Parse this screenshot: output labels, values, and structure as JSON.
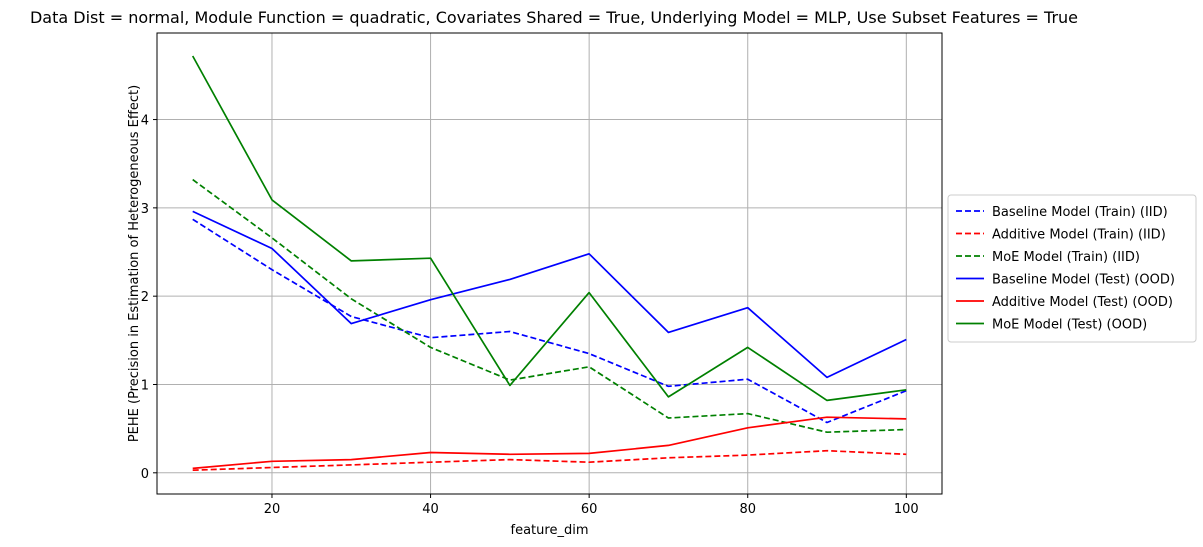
{
  "chart_data": {
    "type": "line",
    "title": "Data Dist = normal, Module Function = quadratic, Covariates Shared = True, Underlying Model = MLP, Use Subset Features = True",
    "xlabel": "feature_dim",
    "ylabel": "PEHE (Precision in Estimation of Heterogeneous Effect)",
    "xlim": [
      5.5,
      104.5
    ],
    "ylim": [
      -0.24,
      4.98
    ],
    "xticks": [
      20,
      40,
      60,
      80,
      100
    ],
    "yticks": [
      0,
      1,
      2,
      3,
      4
    ],
    "grid": true,
    "legend_position": "right-outside",
    "x": [
      10,
      20,
      30,
      40,
      50,
      60,
      70,
      80,
      90,
      100
    ],
    "series": [
      {
        "name": "Baseline Model (Train) (IID)",
        "color": "#0000ff",
        "style": "dashed",
        "values": [
          2.87,
          2.3,
          1.77,
          1.53,
          1.6,
          1.35,
          0.98,
          1.06,
          0.57,
          0.93
        ]
      },
      {
        "name": "Additive Model (Train) (IID)",
        "color": "#ff0000",
        "style": "dashed",
        "values": [
          0.03,
          0.06,
          0.09,
          0.12,
          0.15,
          0.12,
          0.17,
          0.2,
          0.25,
          0.21
        ]
      },
      {
        "name": "MoE Model (Train) (IID)",
        "color": "#008000",
        "style": "dashed",
        "values": [
          3.32,
          2.66,
          1.97,
          1.42,
          1.05,
          1.2,
          0.62,
          0.67,
          0.46,
          0.49
        ]
      },
      {
        "name": "Baseline Model (Test) (OOD)",
        "color": "#0000ff",
        "style": "solid",
        "values": [
          2.96,
          2.54,
          1.69,
          1.96,
          2.19,
          2.48,
          1.59,
          1.87,
          1.08,
          1.51
        ]
      },
      {
        "name": "Additive Model (Test) (OOD)",
        "color": "#ff0000",
        "style": "solid",
        "values": [
          0.05,
          0.13,
          0.15,
          0.23,
          0.21,
          0.22,
          0.31,
          0.51,
          0.63,
          0.61
        ]
      },
      {
        "name": "MoE Model (Test) (OOD)",
        "color": "#008000",
        "style": "solid",
        "values": [
          4.72,
          3.09,
          2.4,
          2.43,
          0.99,
          2.04,
          0.86,
          1.42,
          0.82,
          0.94
        ]
      }
    ]
  }
}
